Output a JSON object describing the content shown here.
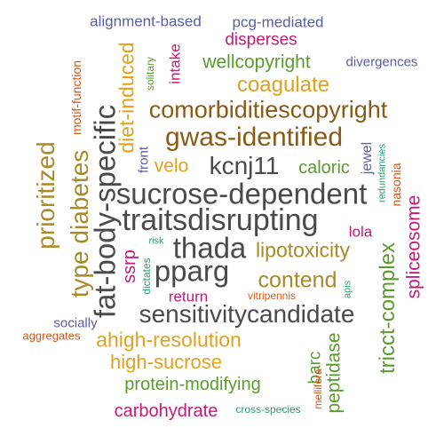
{
  "colors": {
    "purple": "#5B5EA6",
    "magenta": "#C7187A",
    "green": "#5B9B2E",
    "gold": "#E0A21D",
    "olive": "#A88B26",
    "brown": "#8B5A14",
    "dark": "#4A4A4A",
    "orange": "#D05A1E",
    "teal": "#2E9A7A"
  },
  "words": [
    {
      "text": "alignment-based",
      "color": "purple"
    },
    {
      "text": "pcg-mediated",
      "color": "purple"
    },
    {
      "text": "disperses",
      "color": "magenta"
    },
    {
      "text": "wellcopyright",
      "color": "green"
    },
    {
      "text": "divergences",
      "color": "purple"
    },
    {
      "text": "coagulate",
      "color": "gold"
    },
    {
      "text": "comorbiditiescopyright",
      "color": "brown"
    },
    {
      "text": "gwas-identified",
      "color": "brown"
    },
    {
      "text": "velo",
      "color": "gold"
    },
    {
      "text": "kcnj11",
      "color": "dark"
    },
    {
      "text": "caloric",
      "color": "green"
    },
    {
      "text": "sucrose-dependent",
      "color": "dark"
    },
    {
      "text": "traitsdisrupting",
      "color": "dark"
    },
    {
      "text": "lola",
      "color": "magenta"
    },
    {
      "text": "thada",
      "color": "dark"
    },
    {
      "text": "lipotoxicity",
      "color": "olive"
    },
    {
      "text": "pparg",
      "color": "dark"
    },
    {
      "text": "contend",
      "color": "olive"
    },
    {
      "text": "return",
      "color": "magenta"
    },
    {
      "text": "vitripennis",
      "color": "orange"
    },
    {
      "text": "sensitivitycandidate",
      "color": "dark"
    },
    {
      "text": "socially",
      "color": "purple"
    },
    {
      "text": "aggregates",
      "color": "orange"
    },
    {
      "text": "ahigh-resolution",
      "color": "gold"
    },
    {
      "text": "high-sucrose",
      "color": "gold"
    },
    {
      "text": "protein-modifying",
      "color": "green"
    },
    {
      "text": "carbohydrate",
      "color": "magenta"
    },
    {
      "text": "cross-species",
      "color": "teal"
    },
    {
      "text": "risk",
      "color": "teal"
    },
    {
      "text": "motif-function",
      "color": "orange"
    },
    {
      "text": "prioritized",
      "color": "olive"
    },
    {
      "text": "type diabetes",
      "color": "olive"
    },
    {
      "text": "fat-body-specific",
      "color": "dark"
    },
    {
      "text": "diet-induced",
      "color": "gold"
    },
    {
      "text": "solitary",
      "color": "green"
    },
    {
      "text": "intake",
      "color": "magenta"
    },
    {
      "text": "front",
      "color": "purple"
    },
    {
      "text": "ssrp",
      "color": "magenta"
    },
    {
      "text": "dictates",
      "color": "teal"
    },
    {
      "text": "jewel",
      "color": "purple"
    },
    {
      "text": "redundancies",
      "color": "teal"
    },
    {
      "text": "nasonia",
      "color": "orange"
    },
    {
      "text": "spliceosome",
      "color": "magenta"
    },
    {
      "text": "tricct-complex",
      "color": "green"
    },
    {
      "text": "apis",
      "color": "teal"
    },
    {
      "text": "barc",
      "color": "green"
    },
    {
      "text": "mellifera",
      "color": "orange"
    },
    {
      "text": "peptidase",
      "color": "green"
    }
  ]
}
